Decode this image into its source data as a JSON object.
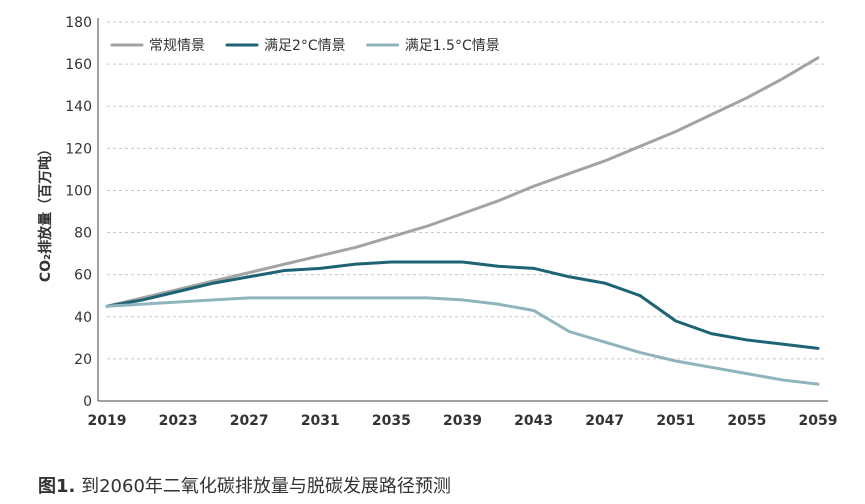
{
  "chart_data": {
    "type": "line",
    "title": "",
    "ylabel": "CO₂排放量（百万吨）",
    "xlabel": "",
    "x": [
      2019,
      2021,
      2023,
      2025,
      2027,
      2029,
      2031,
      2033,
      2035,
      2037,
      2039,
      2041,
      2043,
      2045,
      2047,
      2049,
      2051,
      2053,
      2055,
      2057,
      2059
    ],
    "xticks": [
      "2019",
      "2023",
      "2027",
      "2031",
      "2035",
      "2039",
      "2043",
      "2047",
      "2051",
      "2055",
      "2059"
    ],
    "yticks": [
      "0",
      "20",
      "40",
      "60",
      "80",
      "100",
      "120",
      "140",
      "160",
      "180"
    ],
    "ylim": [
      0,
      180
    ],
    "xlim": [
      2019,
      2059
    ],
    "grid": "horizontal-dashed",
    "legend_position": "top-left",
    "series": [
      {
        "name": "常规情景",
        "color": "#a3a3a3",
        "values": [
          45,
          49,
          53,
          57,
          61,
          65,
          69,
          73,
          78,
          83,
          89,
          95,
          102,
          108,
          114,
          121,
          128,
          136,
          144,
          153,
          163
        ]
      },
      {
        "name": "满足2°C情景",
        "color": "#1d6373",
        "values": [
          45,
          48,
          52,
          56,
          59,
          62,
          63,
          65,
          66,
          66,
          66,
          64,
          63,
          59,
          56,
          50,
          38,
          32,
          29,
          27,
          25
        ]
      },
      {
        "name": "满足1.5°C情景",
        "color": "#8fb4bb",
        "values": [
          45,
          46,
          47,
          48,
          49,
          49,
          49,
          49,
          49,
          49,
          48,
          46,
          43,
          33,
          28,
          23,
          19,
          16,
          13,
          10,
          8
        ]
      }
    ]
  },
  "caption": {
    "label": "图1.",
    "text": "到2060年二氧化碳排放量与脱碳发展路径预测"
  }
}
